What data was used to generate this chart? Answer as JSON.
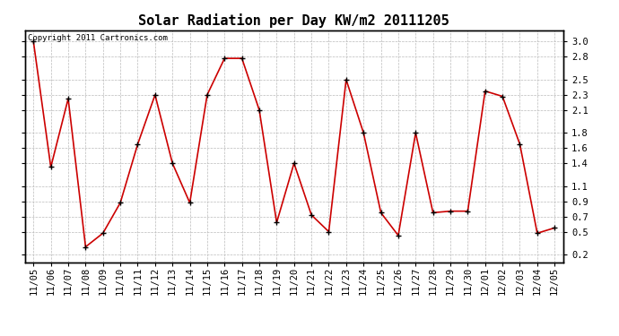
{
  "title": "Solar Radiation per Day KW/m2 20111205",
  "copyright_text": "Copyright 2011 Cartronics.com",
  "x_labels": [
    "11/05",
    "11/06",
    "11/07",
    "11/08",
    "11/09",
    "11/10",
    "11/11",
    "11/12",
    "11/13",
    "11/14",
    "11/15",
    "11/16",
    "11/17",
    "11/18",
    "11/19",
    "11/20",
    "11/21",
    "11/22",
    "11/23",
    "11/24",
    "11/25",
    "11/26",
    "11/27",
    "11/28",
    "11/29",
    "11/30",
    "12/01",
    "12/02",
    "12/03",
    "12/04",
    "12/05"
  ],
  "y_values": [
    3.0,
    1.35,
    2.25,
    0.3,
    0.48,
    0.88,
    1.65,
    2.3,
    1.4,
    0.88,
    2.3,
    2.78,
    2.78,
    2.1,
    0.62,
    1.4,
    0.72,
    0.5,
    2.5,
    1.8,
    0.75,
    0.45,
    1.8,
    0.75,
    0.77,
    0.77,
    2.35,
    2.28,
    1.65,
    0.48,
    0.55
  ],
  "y_ticks": [
    0.2,
    0.5,
    0.7,
    0.9,
    1.1,
    1.4,
    1.6,
    1.8,
    2.1,
    2.3,
    2.5,
    2.8,
    3.0
  ],
  "ylim": [
    0.1,
    3.15
  ],
  "line_color": "#cc0000",
  "marker_color": "black",
  "bg_color": "#ffffff",
  "plot_bg_color": "#ffffff",
  "grid_color": "#bbbbbb",
  "title_fontsize": 11,
  "copyright_fontsize": 6.5,
  "tick_fontsize": 7.5
}
